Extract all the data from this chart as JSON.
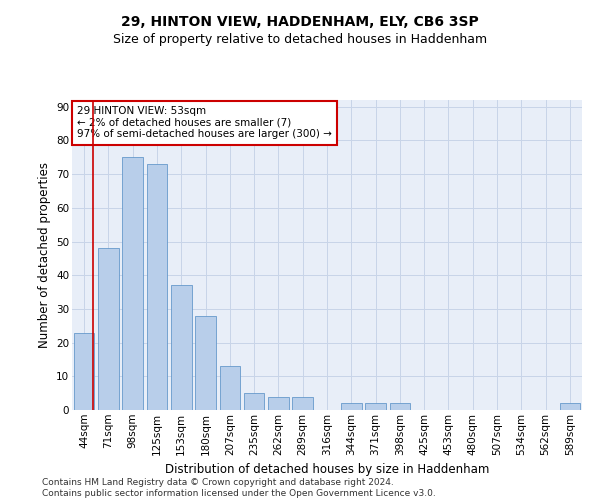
{
  "title1": "29, HINTON VIEW, HADDENHAM, ELY, CB6 3SP",
  "title2": "Size of property relative to detached houses in Haddenham",
  "xlabel": "Distribution of detached houses by size in Haddenham",
  "ylabel": "Number of detached properties",
  "categories": [
    "44sqm",
    "71sqm",
    "98sqm",
    "125sqm",
    "153sqm",
    "180sqm",
    "207sqm",
    "235sqm",
    "262sqm",
    "289sqm",
    "316sqm",
    "344sqm",
    "371sqm",
    "398sqm",
    "425sqm",
    "453sqm",
    "480sqm",
    "507sqm",
    "534sqm",
    "562sqm",
    "589sqm"
  ],
  "values": [
    23,
    48,
    75,
    73,
    37,
    28,
    13,
    5,
    4,
    4,
    0,
    2,
    2,
    2,
    0,
    0,
    0,
    0,
    0,
    0,
    2
  ],
  "bar_color": "#b8ceea",
  "bar_edge_color": "#6699cc",
  "annotation_box_text": "29 HINTON VIEW: 53sqm\n← 2% of detached houses are smaller (7)\n97% of semi-detached houses are larger (300) →",
  "annotation_box_color": "#ffffff",
  "annotation_box_edge_color": "#cc0000",
  "vline_color": "#cc0000",
  "vline_x": 0.38,
  "ylim": [
    0,
    92
  ],
  "yticks": [
    0,
    10,
    20,
    30,
    40,
    50,
    60,
    70,
    80,
    90
  ],
  "grid_color": "#c8d4e8",
  "bg_color": "#e8eef8",
  "footer": "Contains HM Land Registry data © Crown copyright and database right 2024.\nContains public sector information licensed under the Open Government Licence v3.0.",
  "title1_fontsize": 10,
  "title2_fontsize": 9,
  "xlabel_fontsize": 8.5,
  "ylabel_fontsize": 8.5,
  "tick_fontsize": 7.5,
  "annotation_fontsize": 7.5,
  "footer_fontsize": 6.5
}
